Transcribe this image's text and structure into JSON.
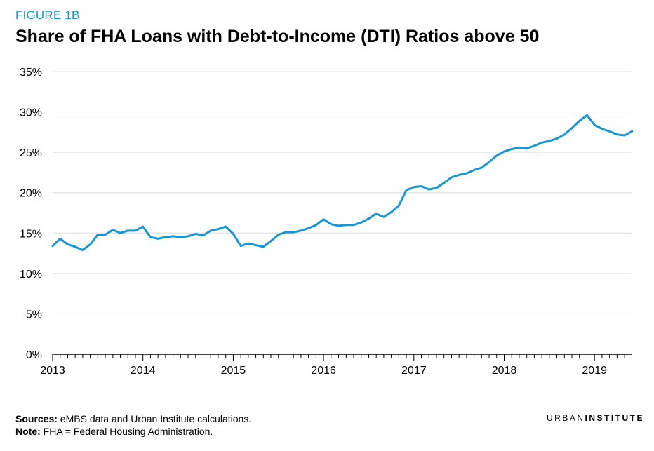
{
  "figure_label": "FIGURE 1B",
  "title": "Share of FHA Loans with Debt-to-Income (DTI) Ratios above 50",
  "sources_label": "Sources:",
  "sources_text": " eMBS data and Urban Institute calculations.",
  "note_label": "Note:",
  "note_text": " FHA = Federal Housing Administration.",
  "brand": {
    "part1": "URBAN",
    "part2": "INSTITUTE"
  },
  "colors": {
    "line": "#1696d2",
    "grid": "#dedede",
    "axis": "#000000",
    "label": "#1696d2"
  },
  "chart_data": {
    "type": "line",
    "title": "Share of FHA Loans with Debt-to-Income (DTI) Ratios above 50",
    "xlabel": "",
    "ylabel": "",
    "x_ticks": [
      "2013",
      "2014",
      "2015",
      "2016",
      "2017",
      "2018",
      "2019"
    ],
    "y_ticks": [
      "0%",
      "5%",
      "10%",
      "15%",
      "20%",
      "25%",
      "30%",
      "35%"
    ],
    "ylim": [
      0,
      35
    ],
    "x_start": "2013-01",
    "x_end": "2019-06",
    "grid": "horizontal",
    "x_interval": "monthly",
    "series": [
      {
        "name": "",
        "values": [
          13.4,
          14.3,
          13.6,
          13.3,
          12.9,
          13.6,
          14.8,
          14.8,
          15.4,
          15.0,
          15.3,
          15.3,
          15.8,
          14.5,
          14.3,
          14.5,
          14.6,
          14.5,
          14.6,
          14.9,
          14.7,
          15.3,
          15.5,
          15.8,
          14.9,
          13.4,
          13.7,
          13.5,
          13.3,
          14.0,
          14.8,
          15.1,
          15.1,
          15.3,
          15.6,
          16.0,
          16.7,
          16.1,
          15.9,
          16.0,
          16.0,
          16.3,
          16.8,
          17.4,
          17.0,
          17.6,
          18.4,
          20.3,
          20.7,
          20.8,
          20.4,
          20.6,
          21.2,
          21.9,
          22.2,
          22.4,
          22.8,
          23.1,
          23.8,
          24.6,
          25.1,
          25.4,
          25.6,
          25.5,
          25.8,
          26.2,
          26.4,
          26.7,
          27.2,
          28.0,
          28.9,
          29.6,
          28.4,
          27.9,
          27.6,
          27.2,
          27.1,
          27.6
        ]
      }
    ]
  }
}
